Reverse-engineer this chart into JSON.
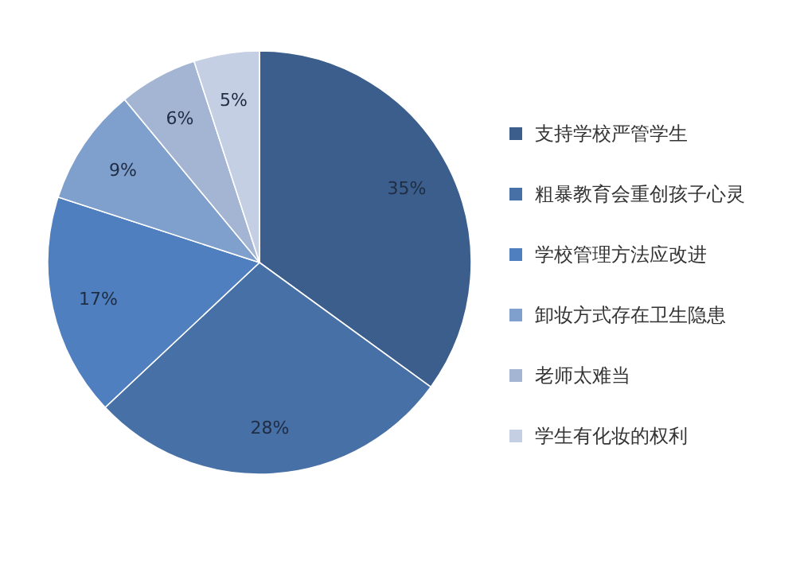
{
  "chart_data": {
    "type": "pie",
    "categories": [
      "支持学校严管学生",
      "粗暴教育会重创孩子心灵",
      "学校管理方法应改进",
      "卸妆方式存在卫生隐患",
      "老师太难当",
      "学生有化妆的权利"
    ],
    "values": [
      35,
      28,
      17,
      9,
      6,
      5
    ],
    "colors": [
      "#3b5e8c",
      "#4770a6",
      "#4f7fbf",
      "#7f9fcc",
      "#a3b5d3",
      "#c5cfe3"
    ],
    "value_labels": [
      "35%",
      "28%",
      "17%",
      "9%",
      "6%",
      "5%"
    ],
    "legend": "right"
  }
}
